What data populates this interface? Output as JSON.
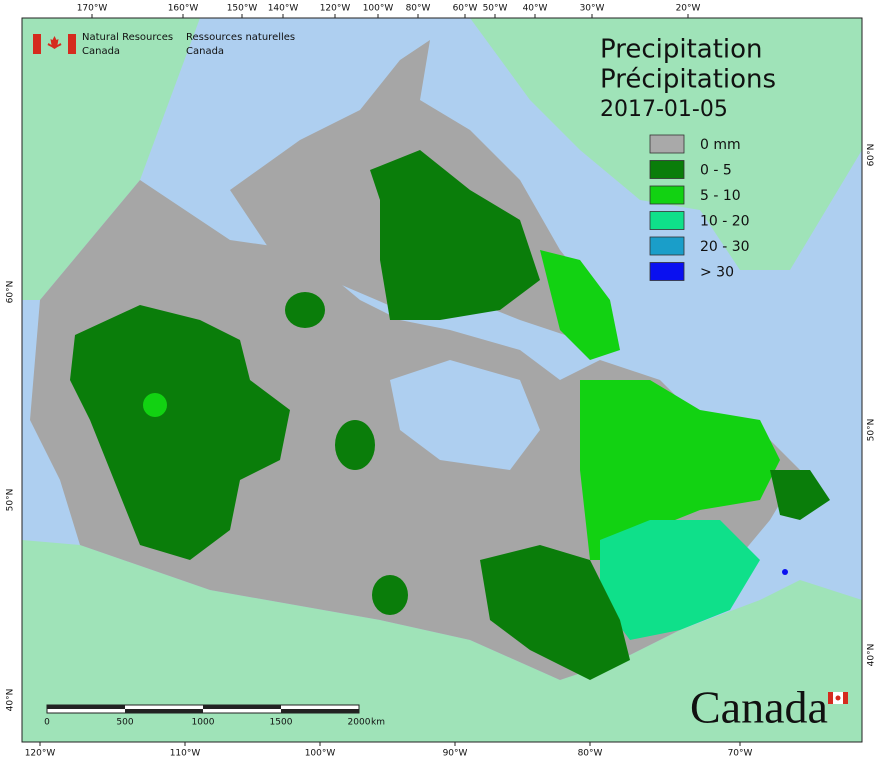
{
  "header": {
    "agency_en": [
      "Natural Resources",
      "Canada"
    ],
    "agency_fr": [
      "Ressources naturelles",
      "Canada"
    ]
  },
  "title": {
    "line1": "Precipitation",
    "line2": "Précipitations",
    "date": "2017-01-05"
  },
  "legend": [
    {
      "label": "0 mm",
      "color": "#a9a9a9"
    },
    {
      "label": "0 - 5",
      "color": "#0a7d0a"
    },
    {
      "label": "5 - 10",
      "color": "#12d212"
    },
    {
      "label": "10 - 20",
      "color": "#0fe08a"
    },
    {
      "label": "20 - 30",
      "color": "#1a9ec9"
    },
    {
      "label": "> 30",
      "color": "#0a10f0"
    }
  ],
  "graticule": {
    "top": [
      "170°W",
      "160°W",
      "150°W",
      "140°W",
      "120°W",
      "100°W",
      "80°W",
      "60°W",
      "50°W",
      "40°W",
      "30°W",
      "20°W"
    ],
    "bottom": [
      "120°W",
      "110°W",
      "100°W",
      "90°W",
      "80°W",
      "70°W"
    ],
    "left": [
      "60°N",
      "50°N",
      "40°N"
    ],
    "right": [
      "60°N",
      "50°N",
      "40°N"
    ]
  },
  "scale_bar": {
    "ticks": [
      "0",
      "500",
      "1000",
      "1500",
      "2000"
    ],
    "unit": "km"
  },
  "wordmark": "Canada"
}
